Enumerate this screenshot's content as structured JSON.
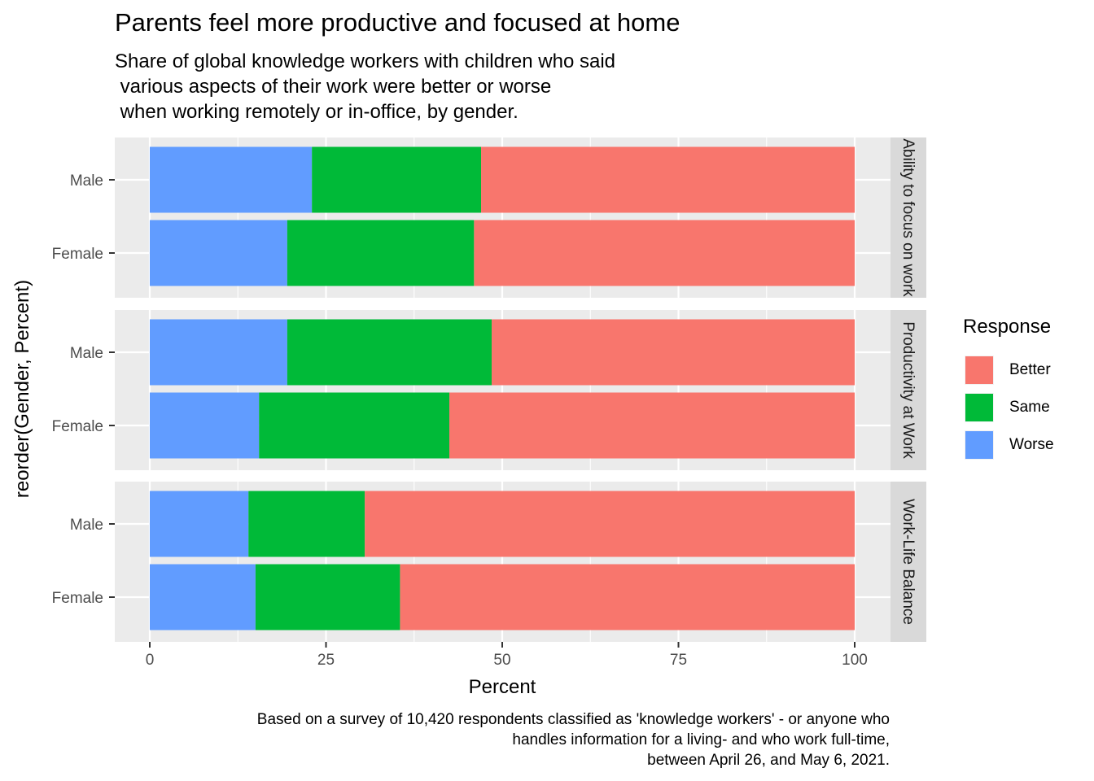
{
  "chart_data": {
    "type": "bar",
    "orientation": "horizontal",
    "stacked": true,
    "title": "Parents feel more productive and focused at home",
    "subtitle": "Share of global knowledge workers with children who said\n various aspects of their work were better or worse\n when working remotely or in-office, by gender.",
    "caption": "Based on a survey of 10,420 respondents classified as 'knowledge workers' - or anyone who\nhandles information for a living- and who work full-time,\nbetween April 26, and May 6, 2021.",
    "xlabel": "Percent",
    "ylabel": "reorder(Gender, Percent)",
    "xlim": [
      0,
      100
    ],
    "x_ticks": [
      "0",
      "25",
      "50",
      "75",
      "100"
    ],
    "grid": true,
    "legend": {
      "title": "Response",
      "position": "right",
      "entries": [
        {
          "name": "Better",
          "color": "#F8766D"
        },
        {
          "name": "Same",
          "color": "#00BA38"
        },
        {
          "name": "Worse",
          "color": "#619CFF"
        }
      ]
    },
    "facets": [
      {
        "strip": "Ability to focus on work",
        "rows": [
          {
            "category": "Male",
            "worse": 23,
            "same": 24,
            "better": 53
          },
          {
            "category": "Female",
            "worse": 19.5,
            "same": 26.5,
            "better": 54
          }
        ]
      },
      {
        "strip": "Productivity at Work",
        "rows": [
          {
            "category": "Male",
            "worse": 19.5,
            "same": 29,
            "better": 51.5
          },
          {
            "category": "Female",
            "worse": 15.5,
            "same": 27,
            "better": 57.5
          }
        ]
      },
      {
        "strip": "Work-Life Balance",
        "rows": [
          {
            "category": "Male",
            "worse": 14,
            "same": 16.5,
            "better": 69.5
          },
          {
            "category": "Female",
            "worse": 15,
            "same": 20.5,
            "better": 64.5
          }
        ]
      }
    ]
  }
}
